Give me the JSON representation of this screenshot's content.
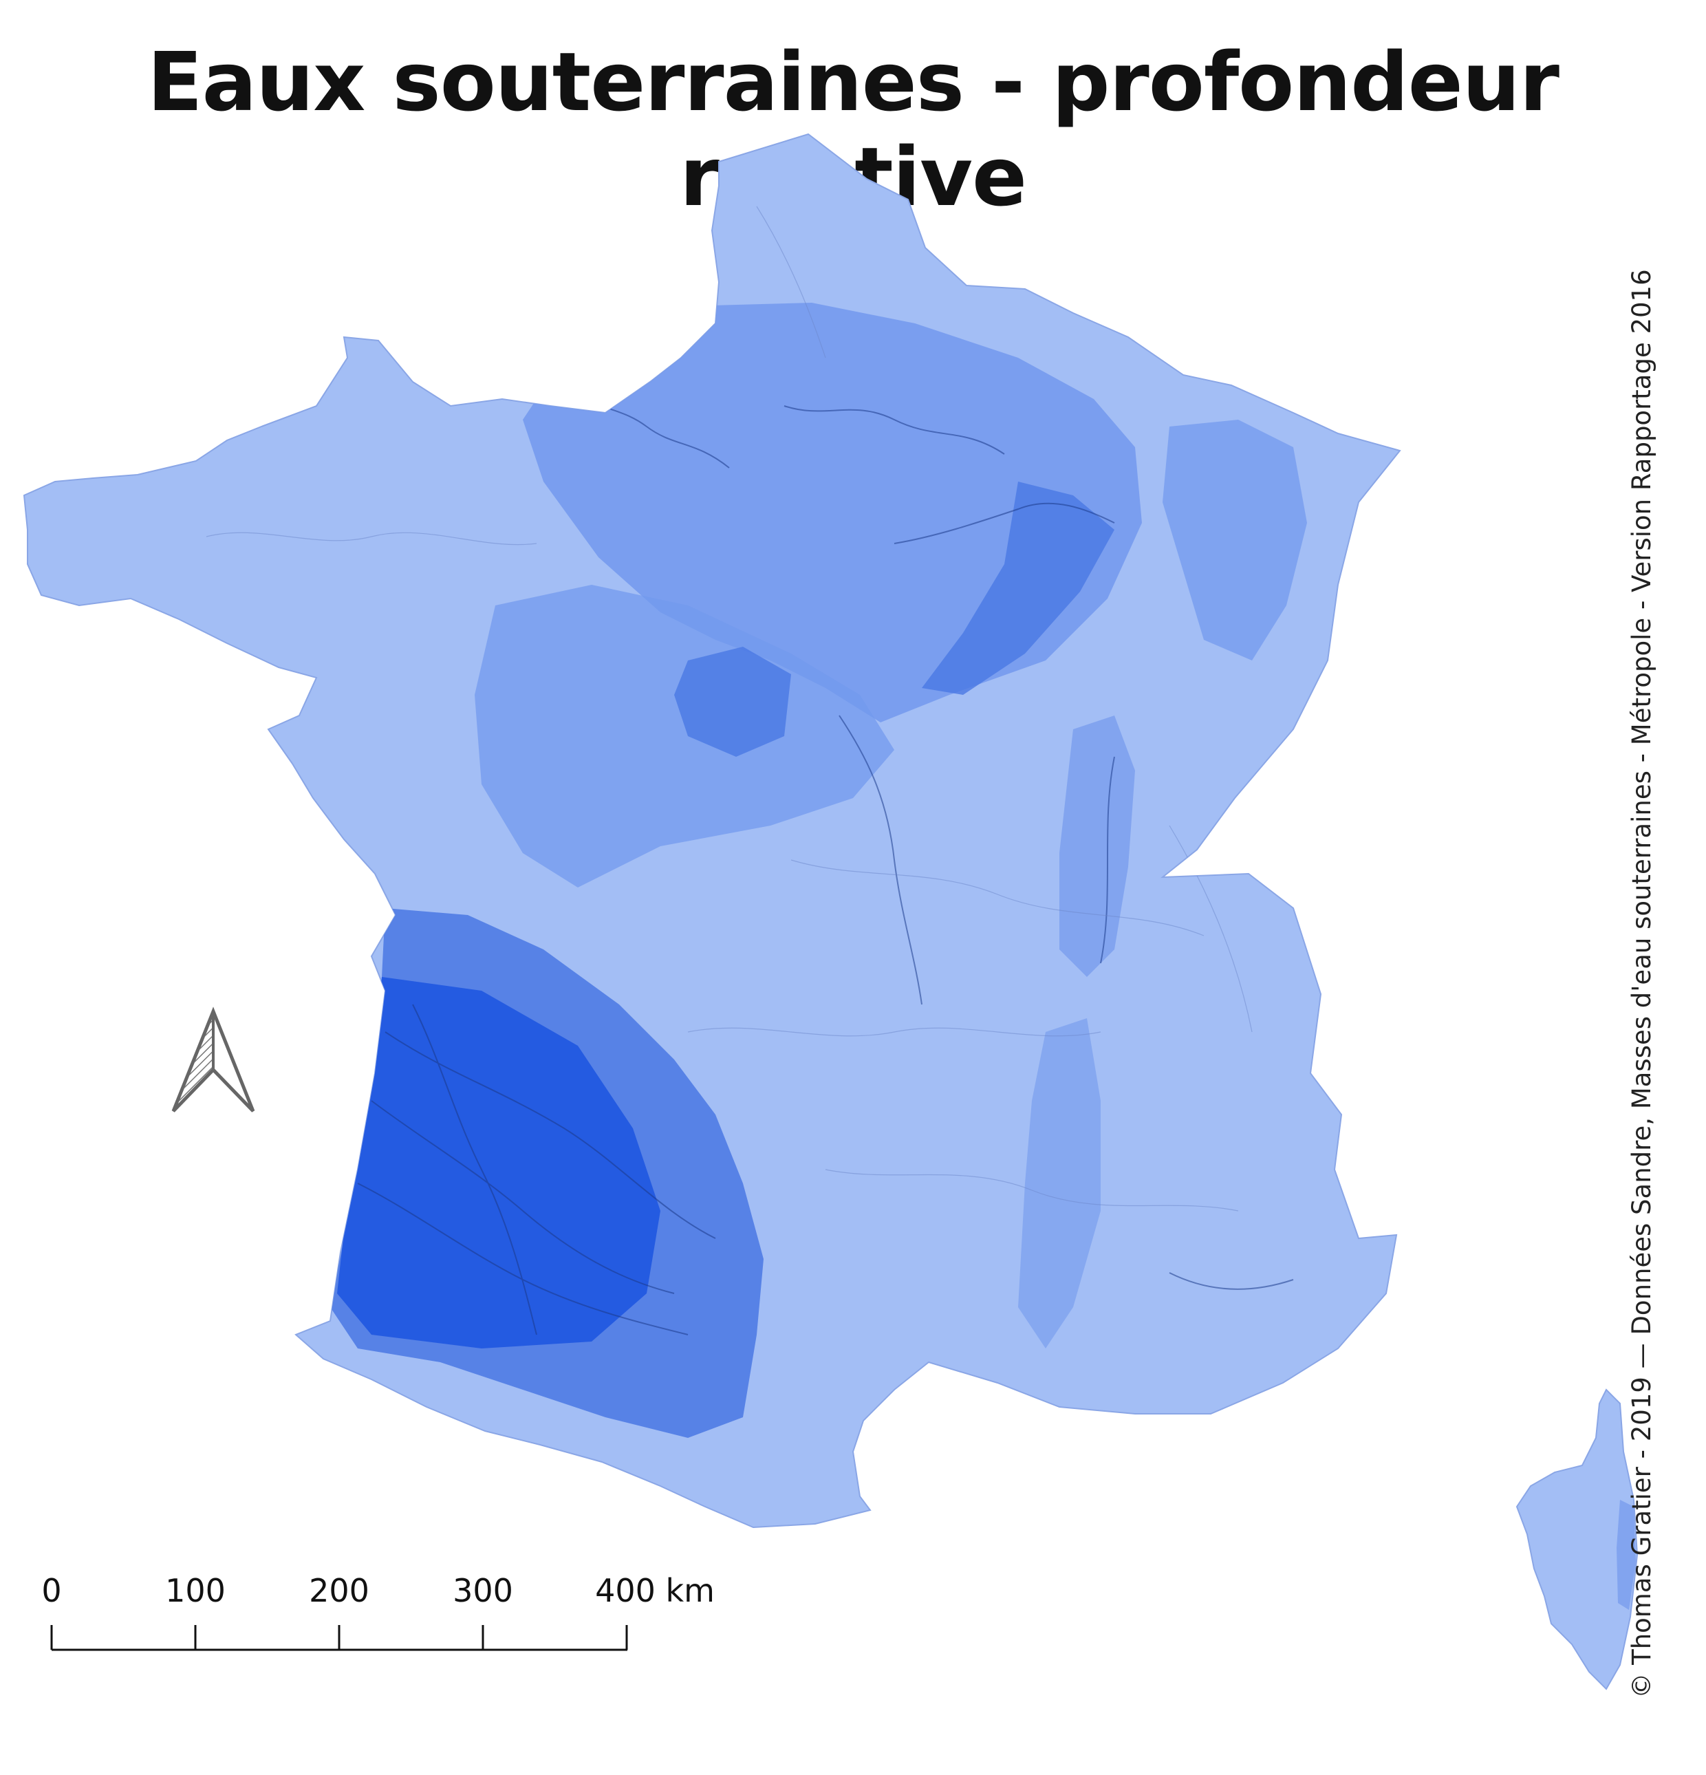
{
  "title": "Eaux souterraines - profondeur relative",
  "credit": "© Thomas Gratier - 2019 — Données Sandre, Masses d'eau souterraines - Métropole - Version Rapportage 2016",
  "scale_bar": {
    "labels": [
      "0",
      "100",
      "200",
      "300",
      "400 km"
    ],
    "unit": "km"
  },
  "colors": {
    "shallow": "#a3bef5",
    "medium": "#7399ed",
    "deep": "#4a78e3",
    "deepest": "#1f57e0",
    "outline": "#1b3a8a"
  },
  "icons": {
    "north_arrow": "north-arrow-icon"
  }
}
